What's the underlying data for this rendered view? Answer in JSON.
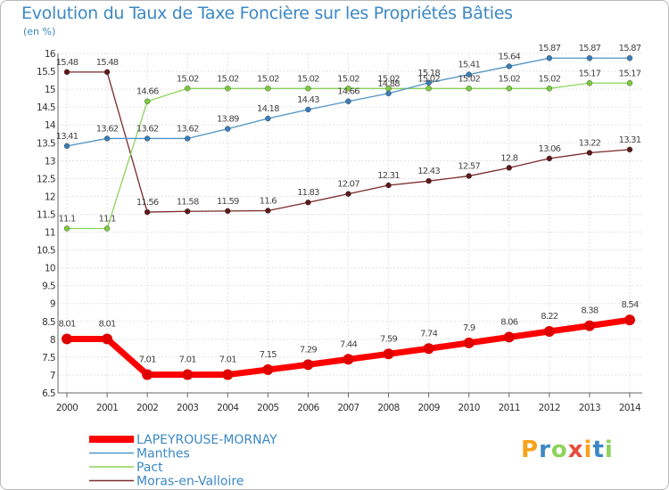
{
  "chart_data": {
    "type": "line",
    "title": "Evolution du Taux de Taxe Foncière sur les Propriétés Bâties",
    "subtitle": "(en %)",
    "x": [
      "2000",
      "2001",
      "2002",
      "2003",
      "2004",
      "2005",
      "2006",
      "2007",
      "2008",
      "2009",
      "2010",
      "2011",
      "2012",
      "2013",
      "2014"
    ],
    "ylim": [
      6.5,
      16
    ],
    "yticks": [
      "6.5",
      "7",
      "7.5",
      "8",
      "8.5",
      "9",
      "9.5",
      "10",
      "10.5",
      "11",
      "11.5",
      "12",
      "12.5",
      "13",
      "13.5",
      "14",
      "14.5",
      "15",
      "15.5",
      "16"
    ],
    "grid": true,
    "legend_position": "bottom-left",
    "series": [
      {
        "name": "LAPEYROUSE-MORNAY",
        "color": "#ff0000",
        "point_color": "#e00000",
        "values": [
          8.01,
          8.01,
          7.01,
          7.01,
          7.01,
          7.15,
          7.29,
          7.44,
          7.59,
          7.74,
          7.9,
          8.06,
          8.22,
          8.38,
          8.54
        ],
        "labels": [
          "8.01",
          "8.01",
          "7.01",
          "7.01",
          "7.01",
          "7.15",
          "7.29",
          "7.44",
          "7.59",
          "7.74",
          "7.9",
          "8.06",
          "8.22",
          "8.38",
          "8.54"
        ]
      },
      {
        "name": "Manthes",
        "color": "#4f93c5",
        "point_color": "#3a7db8",
        "values": [
          13.41,
          13.62,
          13.62,
          13.62,
          13.89,
          14.18,
          14.43,
          14.66,
          14.88,
          15.18,
          15.41,
          15.64,
          15.87,
          15.87,
          15.87
        ],
        "labels": [
          "13.41",
          "13.62",
          "13.62",
          "13.62",
          "13.89",
          "14.18",
          "14.43",
          "14.66",
          "14.88",
          "15.18",
          "15.41",
          "15.64",
          "15.87",
          "15.87",
          "15.87"
        ]
      },
      {
        "name": "Pact",
        "color": "#8ed35a",
        "point_color": "#7ccb3f",
        "values": [
          11.1,
          11.1,
          14.66,
          15.02,
          15.02,
          15.02,
          15.02,
          15.02,
          15.02,
          15.02,
          15.02,
          15.02,
          15.02,
          15.17,
          15.17
        ],
        "labels": [
          "11.1",
          "11.1",
          "14.66",
          "15.02",
          "15.02",
          "15.02",
          "15.02",
          "15.02",
          "15.02",
          "15.02",
          "15.02",
          "15.02",
          "15.02",
          "15.17",
          "15.17"
        ]
      },
      {
        "name": "Moras-en-Valloire",
        "color": "#7a2a2a",
        "point_color": "#5e1818",
        "values": [
          15.48,
          15.48,
          11.56,
          11.58,
          11.59,
          11.6,
          11.83,
          12.07,
          12.31,
          12.43,
          12.57,
          12.8,
          13.06,
          13.22,
          13.31
        ],
        "labels": [
          "15.48",
          "15.48",
          "11.56",
          "11.58",
          "11.59",
          "11.6",
          "11.83",
          "12.07",
          "12.31",
          "12.43",
          "12.57",
          "12.8",
          "13.06",
          "13.22",
          "13.31"
        ]
      }
    ]
  },
  "logo": {
    "text": "Proxiti",
    "colors": [
      "#f7a21b",
      "#3b88c4",
      "#8ed35a",
      "#e84c3d",
      "#f7a21b",
      "#3b88c4",
      "#8ed35a"
    ]
  }
}
